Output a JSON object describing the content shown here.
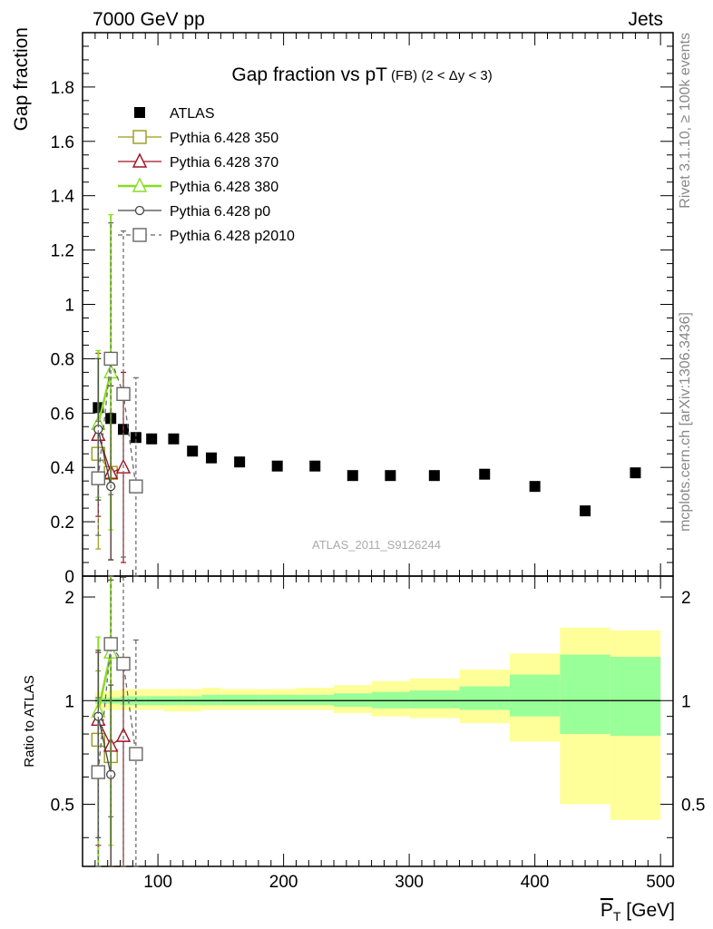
{
  "header": {
    "left": "7000 GeV pp",
    "right": "Jets"
  },
  "side_labels": {
    "rivet": "Rivet 3.1.10, ≥ 100k events",
    "mcplots": "mcplots.cern.ch [arXiv:1306.3436]"
  },
  "colors": {
    "atlas": "#000000",
    "py350": "#9a9a1a",
    "py370": "#a01020",
    "py380": "#88dd22",
    "p0": "#444444",
    "p2010": "#666666",
    "band_inner": "#99ff99",
    "band_outer": "#ffff99"
  },
  "chart_data": [
    {
      "type": "scatter",
      "panel": "main",
      "title": "Gap fraction vs pT",
      "title_small": "(FB) (2 < Δy < 3)",
      "ylabel": "Gap fraction",
      "watermark": "ATLAS_2011_S9126244",
      "xlim": [
        40,
        510
      ],
      "ylim": [
        0,
        2.0
      ],
      "yticks": [
        "0",
        "0.2",
        "0.4",
        "0.6",
        "0.8",
        "1",
        "1.2",
        "1.4",
        "1.6",
        "1.8"
      ],
      "legend_position": "top-left",
      "series": [
        {
          "name": "ATLAS",
          "key": "atlas",
          "style": "square-filled",
          "x": [
            52.5,
            62.5,
            72.5,
            82.5,
            95,
            112.5,
            127.5,
            142.5,
            165,
            195,
            225,
            255,
            285,
            320,
            360,
            400,
            440,
            480
          ],
          "y": [
            0.62,
            0.58,
            0.54,
            0.51,
            0.505,
            0.505,
            0.46,
            0.435,
            0.42,
            0.405,
            0.405,
            0.37,
            0.37,
            0.37,
            0.375,
            0.33,
            0.24,
            0.38
          ]
        },
        {
          "name": "Pythia 6.428 350",
          "key": "py350",
          "style": "square-open",
          "x": [
            52.5,
            62.5
          ],
          "y": [
            0.45,
            0.38
          ],
          "err": [
            0.35,
            0.32
          ]
        },
        {
          "name": "Pythia 6.428 370",
          "key": "py370",
          "style": "triangle-open",
          "x": [
            52.5,
            62.5,
            72.5
          ],
          "y": [
            0.52,
            0.38,
            0.4
          ],
          "err": [
            0.3,
            0.32,
            0.35
          ]
        },
        {
          "name": "Pythia 6.428 380",
          "key": "py380",
          "style": "triangle-open-thick",
          "x": [
            52.5,
            62.5
          ],
          "y": [
            0.56,
            0.75
          ],
          "err": [
            0.27,
            0.58
          ]
        },
        {
          "name": "Pythia 6.428 p0",
          "key": "p0",
          "style": "circle-open",
          "x": [
            52.5,
            62.5
          ],
          "y": [
            0.54,
            0.33
          ],
          "err": [
            0.26,
            0.27
          ]
        },
        {
          "name": "Pythia 6.428 p2010",
          "key": "p2010",
          "style": "square-open-dashed",
          "x": [
            52.5,
            62.5,
            72.5,
            82.5
          ],
          "y": [
            0.36,
            0.8,
            0.67,
            0.33
          ],
          "err": [
            0.21,
            0.5,
            0.6,
            0.4
          ]
        }
      ]
    },
    {
      "type": "scatter",
      "panel": "ratio",
      "ylabel": "Ratio to ATLAS",
      "xlabel": "P_T [GeV]",
      "xlim": [
        40,
        510
      ],
      "ylim": [
        0.33,
        2.3
      ],
      "log_y": true,
      "xticks": [
        "100",
        "200",
        "300",
        "400",
        "500"
      ],
      "yticks": [
        "0.5",
        "1",
        "2"
      ],
      "band": {
        "edges": [
          50,
          60,
          70,
          80,
          90,
          105,
          120,
          135,
          150,
          180,
          210,
          240,
          270,
          300,
          340,
          380,
          420,
          460,
          500
        ],
        "inner_lo": [
          0.98,
          0.98,
          0.97,
          0.97,
          0.97,
          0.97,
          0.97,
          0.97,
          0.97,
          0.97,
          0.97,
          0.96,
          0.95,
          0.95,
          0.94,
          0.9,
          0.8,
          0.79
        ],
        "inner_hi": [
          1.02,
          1.02,
          1.03,
          1.03,
          1.03,
          1.03,
          1.03,
          1.04,
          1.04,
          1.04,
          1.04,
          1.05,
          1.06,
          1.07,
          1.1,
          1.19,
          1.36,
          1.34
        ],
        "outer_lo": [
          0.94,
          0.94,
          0.94,
          0.94,
          0.94,
          0.93,
          0.93,
          0.94,
          0.94,
          0.94,
          0.94,
          0.92,
          0.9,
          0.89,
          0.86,
          0.76,
          0.5,
          0.45
        ],
        "outer_hi": [
          1.06,
          1.07,
          1.08,
          1.08,
          1.08,
          1.08,
          1.08,
          1.09,
          1.08,
          1.08,
          1.09,
          1.11,
          1.14,
          1.16,
          1.23,
          1.37,
          1.63,
          1.6
        ]
      },
      "series": [
        {
          "key": "py350",
          "style": "square-open",
          "x": [
            52.5,
            62.5
          ],
          "y": [
            0.77,
            0.69
          ],
          "err_lo": [
            0.45,
            0.65
          ],
          "err_hi": [
            0.45,
            0.65
          ]
        },
        {
          "key": "py370",
          "style": "triangle-open",
          "x": [
            52.5,
            62.5,
            72.5
          ],
          "y": [
            0.88,
            0.74,
            0.79
          ],
          "err_lo": [
            0.5,
            0.55,
            0.5
          ],
          "err_hi": [
            0.5,
            1.5,
            0.5
          ]
        },
        {
          "key": "py380",
          "style": "triangle-open-thick",
          "x": [
            52.5,
            62.5
          ],
          "y": [
            0.93,
            1.38
          ],
          "err_lo": [
            0.6,
            1.0
          ],
          "err_hi": [
            0.6,
            1.0
          ]
        },
        {
          "key": "p0",
          "style": "circle-open",
          "x": [
            52.5,
            62.5
          ],
          "y": [
            0.9,
            0.61
          ],
          "err_lo": [
            0.5,
            0.5
          ],
          "err_hi": [
            0.5,
            0.5
          ]
        },
        {
          "key": "p2010",
          "style": "square-open-dashed",
          "x": [
            52.5,
            62.5,
            72.5,
            82.5
          ],
          "y": [
            0.62,
            1.46,
            1.28,
            0.7
          ],
          "err_lo": [
            0.4,
            1.0,
            1.0,
            0.5
          ],
          "err_hi": [
            0.4,
            1.0,
            1.0,
            0.8
          ]
        }
      ]
    }
  ]
}
